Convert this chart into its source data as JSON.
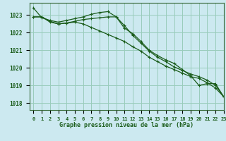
{
  "title": "Graphe pression niveau de la mer (hPa)",
  "background_color": "#cce9f0",
  "plot_bg_color": "#cce9f0",
  "grid_color": "#99ccbb",
  "line_color": "#1a5c1a",
  "spine_color": "#336633",
  "xlim": [
    -0.5,
    23
  ],
  "ylim": [
    1017.6,
    1023.7
  ],
  "ytick_values": [
    1018,
    1019,
    1020,
    1021,
    1022,
    1023
  ],
  "series": [
    {
      "x": [
        0,
        1,
        2,
        3,
        4,
        5,
        6,
        7,
        8,
        9,
        10,
        11,
        12,
        13,
        14,
        15,
        16,
        17,
        18,
        19,
        20,
        21,
        22,
        23
      ],
      "y": [
        1023.4,
        1022.85,
        1022.7,
        1022.6,
        1022.7,
        1022.8,
        1022.9,
        1023.05,
        1023.15,
        1023.2,
        1022.9,
        1022.25,
        1021.95,
        1021.5,
        1021.0,
        1020.7,
        1020.45,
        1020.25,
        1019.9,
        1019.55,
        1019.0,
        1019.1,
        1019.1,
        1018.35
      ]
    },
    {
      "x": [
        0,
        1,
        2,
        3,
        4,
        5,
        6,
        7,
        8,
        9,
        10,
        11,
        12,
        13,
        14,
        15,
        16,
        17,
        18,
        19,
        20,
        21,
        22,
        23
      ],
      "y": [
        1022.9,
        1022.9,
        1022.65,
        1022.5,
        1022.55,
        1022.65,
        1022.75,
        1022.8,
        1022.85,
        1022.9,
        1022.9,
        1022.4,
        1021.85,
        1021.4,
        1020.95,
        1020.6,
        1020.35,
        1020.05,
        1019.85,
        1019.65,
        1019.5,
        1019.3,
        1019.0,
        1018.35
      ]
    },
    {
      "x": [
        0,
        1,
        2,
        3,
        4,
        5,
        6,
        7,
        8,
        9,
        10,
        11,
        12,
        13,
        14,
        15,
        16,
        17,
        18,
        19,
        20,
        21,
        22,
        23
      ],
      "y": [
        1022.9,
        1022.9,
        1022.6,
        1022.5,
        1022.55,
        1022.6,
        1022.5,
        1022.3,
        1022.1,
        1021.9,
        1021.7,
        1021.5,
        1021.2,
        1020.95,
        1020.6,
        1020.35,
        1020.1,
        1019.9,
        1019.7,
        1019.5,
        1019.4,
        1019.15,
        1018.85,
        1018.35
      ]
    }
  ]
}
